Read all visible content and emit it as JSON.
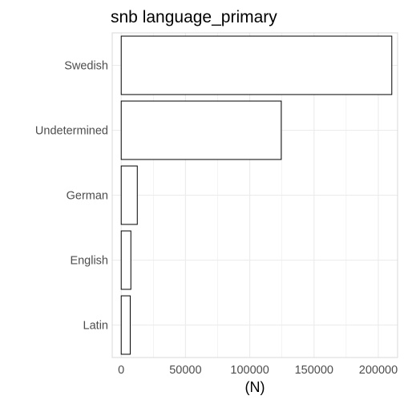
{
  "chart_data": {
    "type": "bar",
    "orientation": "horizontal",
    "title": "snb language_primary",
    "xlabel": "(N)",
    "ylabel": "",
    "categories": [
      "Swedish",
      "Undetermined",
      "German",
      "English",
      "Latin"
    ],
    "values": [
      210500,
      124500,
      12500,
      7500,
      7000
    ],
    "xlim": [
      -7000,
      215000
    ],
    "xticks": [
      0,
      50000,
      100000,
      150000,
      200000
    ],
    "xtick_labels": [
      "0",
      "50000",
      "100000",
      "150000",
      "200000"
    ],
    "grid": true,
    "bar_fill": "#ffffff",
    "bar_stroke": "#000000",
    "grid_color": "#ebebeb",
    "panel_border": "#d9d9d9"
  }
}
